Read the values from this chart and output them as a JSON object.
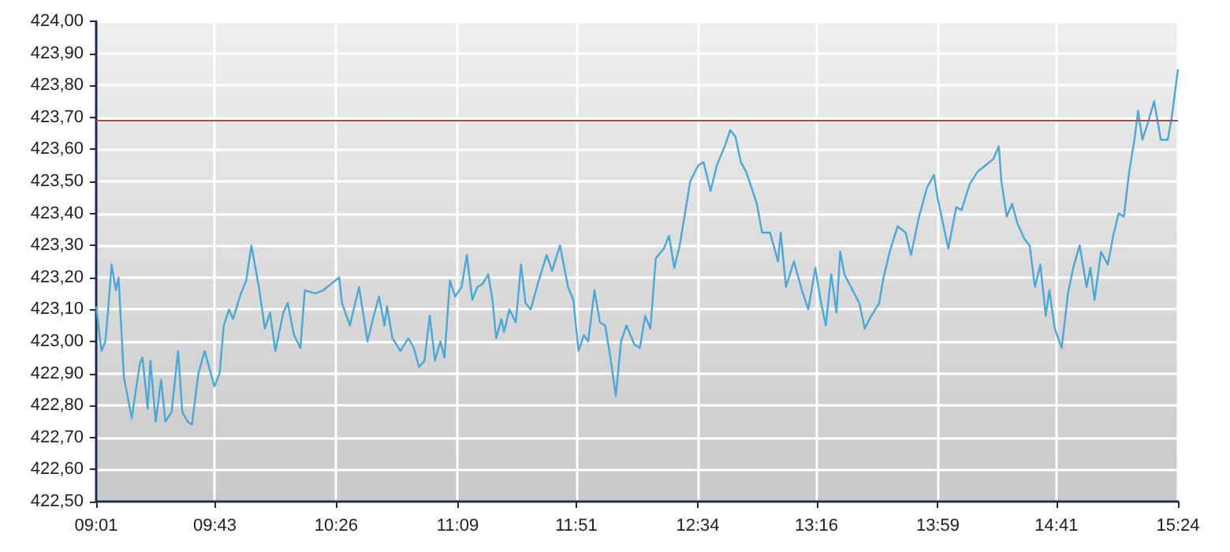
{
  "chart_data": {
    "type": "line",
    "grid": true,
    "marker": "none",
    "line_style": "solid",
    "xlim": [
      9.017,
      15.4
    ],
    "xticks": [
      {
        "value": 9.017,
        "label": "09:01"
      },
      {
        "value": 9.717,
        "label": "09:43"
      },
      {
        "value": 10.433,
        "label": "10:26"
      },
      {
        "value": 11.15,
        "label": "11:09"
      },
      {
        "value": 11.85,
        "label": "11:51"
      },
      {
        "value": 12.567,
        "label": "12:34"
      },
      {
        "value": 13.267,
        "label": "13:16"
      },
      {
        "value": 13.983,
        "label": "13:59"
      },
      {
        "value": 14.683,
        "label": "14:41"
      },
      {
        "value": 15.4,
        "label": "15:24"
      }
    ],
    "ylim": [
      422.5,
      424
    ],
    "yticks": [
      {
        "value": 422.5,
        "label": "422,50"
      },
      {
        "value": 422.6,
        "label": "422,60"
      },
      {
        "value": 422.7,
        "label": "422,70"
      },
      {
        "value": 422.8,
        "label": "422,80"
      },
      {
        "value": 422.9,
        "label": "422,90"
      },
      {
        "value": 423.0,
        "label": "423,00"
      },
      {
        "value": 423.1,
        "label": "423,10"
      },
      {
        "value": 423.2,
        "label": "423,20"
      },
      {
        "value": 423.3,
        "label": "423,30"
      },
      {
        "value": 423.4,
        "label": "423,40"
      },
      {
        "value": 423.5,
        "label": "423,50"
      },
      {
        "value": 423.6,
        "label": "423,60"
      },
      {
        "value": 423.7,
        "label": "423,70"
      },
      {
        "value": 423.8,
        "label": "423,80"
      },
      {
        "value": 423.9,
        "label": "423,90"
      },
      {
        "value": 424.0,
        "label": "424,00"
      }
    ],
    "ref_lines": [
      {
        "axis": "y",
        "value": 423.69,
        "color": "#a05050"
      }
    ],
    "series": [
      {
        "color": "#4aa8d8",
        "x": [
          9.017,
          9.048,
          9.071,
          9.086,
          9.108,
          9.133,
          9.149,
          9.18,
          9.227,
          9.274,
          9.29,
          9.321,
          9.337,
          9.368,
          9.4,
          9.425,
          9.462,
          9.5,
          9.525,
          9.556,
          9.582,
          9.62,
          9.657,
          9.714,
          9.745,
          9.77,
          9.801,
          9.824,
          9.871,
          9.902,
          9.933,
          9.98,
          10.012,
          10.043,
          10.074,
          10.121,
          10.147,
          10.184,
          10.222,
          10.248,
          10.31,
          10.357,
          10.404,
          10.451,
          10.467,
          10.514,
          10.568,
          10.618,
          10.655,
          10.686,
          10.718,
          10.733,
          10.765,
          10.812,
          10.859,
          10.891,
          10.922,
          10.954,
          10.985,
          11.016,
          11.048,
          11.072,
          11.104,
          11.135,
          11.173,
          11.204,
          11.236,
          11.267,
          11.298,
          11.33,
          11.355,
          11.377,
          11.408,
          11.424,
          11.455,
          11.493,
          11.524,
          11.55,
          11.581,
          11.628,
          11.675,
          11.707,
          11.754,
          11.801,
          11.832,
          11.863,
          11.895,
          11.92,
          11.957,
          11.989,
          12.02,
          12.051,
          12.083,
          12.114,
          12.146,
          12.193,
          12.225,
          12.256,
          12.287,
          12.319,
          12.366,
          12.397,
          12.428,
          12.46,
          12.491,
          12.522,
          12.569,
          12.601,
          12.642,
          12.679,
          12.726,
          12.758,
          12.789,
          12.821,
          12.852,
          12.884,
          12.915,
          12.946,
          12.993,
          13.04,
          13.056,
          13.087,
          13.134,
          13.181,
          13.219,
          13.26,
          13.291,
          13.322,
          13.354,
          13.385,
          13.407,
          13.432,
          13.48,
          13.52,
          13.552,
          13.59,
          13.637,
          13.659,
          13.699,
          13.746,
          13.793,
          13.825,
          13.872,
          13.919,
          13.96,
          13.981,
          14.045,
          14.092,
          14.123,
          14.17,
          14.217,
          14.264,
          14.311,
          14.343,
          14.358,
          14.39,
          14.421,
          14.452,
          14.494,
          14.525,
          14.556,
          14.588,
          14.62,
          14.641,
          14.673,
          14.714,
          14.751,
          14.782,
          14.82,
          14.861,
          14.883,
          14.908,
          14.946,
          14.986,
          15.018,
          15.05,
          15.081,
          15.112,
          15.143,
          15.165,
          15.19,
          15.221,
          15.259,
          15.299,
          15.34,
          15.363,
          15.4
        ],
        "values": [
          423.11,
          422.97,
          423.0,
          423.09,
          423.24,
          423.16,
          423.2,
          422.89,
          422.76,
          422.93,
          422.95,
          422.79,
          422.94,
          422.75,
          422.88,
          422.75,
          422.78,
          422.97,
          422.78,
          422.75,
          422.74,
          422.9,
          422.97,
          422.86,
          422.9,
          423.05,
          423.1,
          423.07,
          423.15,
          423.19,
          423.3,
          423.16,
          423.04,
          423.09,
          422.97,
          423.09,
          423.12,
          423.02,
          422.98,
          423.16,
          423.15,
          423.16,
          423.18,
          423.2,
          423.12,
          423.05,
          423.17,
          423.0,
          423.08,
          423.14,
          423.05,
          423.11,
          423.01,
          422.97,
          423.01,
          422.98,
          422.92,
          422.94,
          423.08,
          422.94,
          423.0,
          422.95,
          423.19,
          423.14,
          423.17,
          423.27,
          423.13,
          423.17,
          423.18,
          423.21,
          423.13,
          423.01,
          423.07,
          423.03,
          423.1,
          423.06,
          423.24,
          423.12,
          423.1,
          423.19,
          423.27,
          423.22,
          423.3,
          423.17,
          423.13,
          422.97,
          423.02,
          423.0,
          423.16,
          423.06,
          423.05,
          422.95,
          422.83,
          423.0,
          423.05,
          422.99,
          422.98,
          423.08,
          423.04,
          423.26,
          423.29,
          423.33,
          423.23,
          423.3,
          423.4,
          423.5,
          423.55,
          423.56,
          423.47,
          423.55,
          423.61,
          423.66,
          423.64,
          423.56,
          423.53,
          423.48,
          423.43,
          423.34,
          423.34,
          423.25,
          423.34,
          423.17,
          423.25,
          423.16,
          423.1,
          423.23,
          423.13,
          423.05,
          423.21,
          423.09,
          423.28,
          423.21,
          423.16,
          423.12,
          423.04,
          423.08,
          423.12,
          423.19,
          423.28,
          423.36,
          423.34,
          423.27,
          423.39,
          423.48,
          423.52,
          423.45,
          423.29,
          423.42,
          423.41,
          423.49,
          423.53,
          423.55,
          423.57,
          423.61,
          423.5,
          423.39,
          423.43,
          423.37,
          423.32,
          423.3,
          423.17,
          423.24,
          423.08,
          423.16,
          423.04,
          422.98,
          423.15,
          423.23,
          423.3,
          423.17,
          423.23,
          423.13,
          423.28,
          423.24,
          423.33,
          423.4,
          423.39,
          423.53,
          423.63,
          423.72,
          423.63,
          423.68,
          423.75,
          423.63,
          423.63,
          423.7,
          423.85
        ]
      }
    ]
  }
}
